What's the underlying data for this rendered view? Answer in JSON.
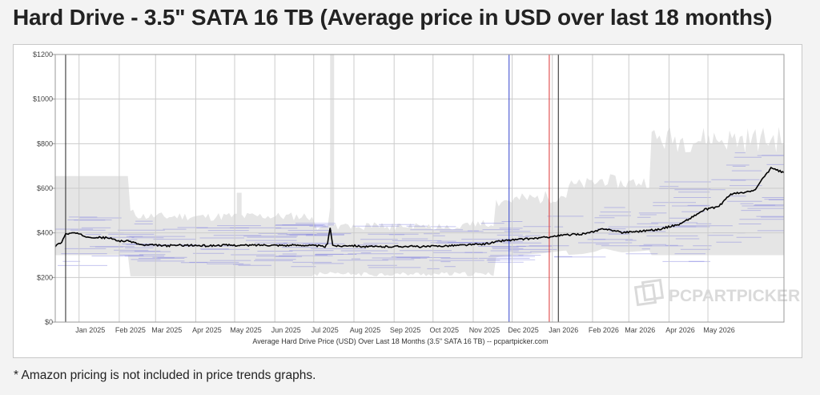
{
  "header": {
    "title": "Hard Drive - 3.5\" SATA 16 TB (Average price in USD over last 18 months)"
  },
  "footnote": "* Amazon pricing is not included in price trends graphs.",
  "watermark": {
    "text": "PCPARTPICKER"
  },
  "colors": {
    "average_line": "#000000",
    "range_fill": "#e5e5e5",
    "retailer_lines": "#8080e0",
    "marker_blue": "#3344cc",
    "marker_red": "#dd3333",
    "marker_black": "#222222",
    "grid": "#cccccc"
  },
  "chart_data": {
    "type": "line",
    "title": "",
    "xlabel": "Average Hard Drive Price (USD) Over Last 18 Months (3.5\" SATA 16 TB) -- pcpartpicker.com",
    "ylabel": "",
    "ylim": [
      0,
      1200
    ],
    "xlim": [
      "2024-12-05",
      "2026-06-20"
    ],
    "grid": true,
    "ytick_labels": [
      "$0",
      "$200",
      "$400",
      "$600",
      "$800",
      "$1000",
      "$1200"
    ],
    "ytick_values": [
      0,
      200,
      400,
      600,
      800,
      1000,
      1200
    ],
    "xtick_labels": [
      "Jan 2025",
      "Feb 2025",
      "Mar 2025",
      "Apr 2025",
      "May 2025",
      "Jun 2025",
      "Jul 2025",
      "Aug 2025",
      "Sep 2025",
      "Oct 2025",
      "Nov 2025",
      "Dec 2025",
      "Jan 2026",
      "Feb 2026",
      "Mar 2026",
      "Apr 2026",
      "May 2026"
    ],
    "xtick_dates": [
      "2025-01-01",
      "2025-02-01",
      "2025-03-01",
      "2025-04-01",
      "2025-05-01",
      "2025-06-01",
      "2025-07-01",
      "2025-08-01",
      "2025-09-01",
      "2025-10-01",
      "2025-11-01",
      "2025-12-01",
      "2026-01-01",
      "2026-02-01",
      "2026-03-01",
      "2026-04-01",
      "2026-05-01"
    ],
    "vertical_markers": [
      {
        "date": "2024-12-13",
        "color": "#222222"
      },
      {
        "date": "2025-11-20",
        "color": "#3344cc"
      },
      {
        "date": "2025-12-21",
        "color": "#dd3333"
      },
      {
        "date": "2025-12-28",
        "color": "#222222"
      }
    ],
    "series": [
      {
        "type": "line",
        "x": [
          "2024-12-05",
          "2024-12-10",
          "2024-12-13",
          "2024-12-20",
          "2024-12-28",
          "2025-01-05",
          "2025-01-15",
          "2025-01-22",
          "2025-02-01",
          "2025-02-10",
          "2025-02-20",
          "2025-03-01",
          "2025-03-10",
          "2025-03-20",
          "2025-04-01",
          "2025-04-15",
          "2025-05-01",
          "2025-05-15",
          "2025-06-01",
          "2025-06-15",
          "2025-06-25",
          "2025-07-01",
          "2025-07-03",
          "2025-07-05",
          "2025-07-07",
          "2025-07-12",
          "2025-07-20",
          "2025-08-01",
          "2025-08-15",
          "2025-09-01",
          "2025-09-15",
          "2025-10-01",
          "2025-10-15",
          "2025-11-01",
          "2025-11-15",
          "2025-12-01",
          "2025-12-15",
          "2026-01-01",
          "2026-01-15",
          "2026-01-25",
          "2026-02-01",
          "2026-02-15",
          "2026-03-01",
          "2026-03-15",
          "2026-03-25",
          "2026-04-01",
          "2026-04-10",
          "2026-04-20",
          "2026-04-25",
          "2026-05-01",
          "2026-05-10",
          "2026-05-20",
          "2026-05-28",
          "2026-06-01",
          "2026-06-05",
          "2026-06-10",
          "2026-06-15",
          "2026-06-20"
        ],
        "y": [
          340,
          360,
          395,
          400,
          385,
          380,
          378,
          365,
          362,
          345,
          345,
          342,
          345,
          344,
          342,
          345,
          344,
          346,
          344,
          345,
          342,
          338,
          350,
          425,
          345,
          340,
          345,
          338,
          338,
          340,
          338,
          342,
          345,
          350,
          365,
          372,
          378,
          390,
          395,
          405,
          420,
          402,
          408,
          415,
          430,
          440,
          470,
          505,
          510,
          520,
          575,
          580,
          590,
          620,
          655,
          690,
          680,
          670
        ]
      }
    ]
  }
}
